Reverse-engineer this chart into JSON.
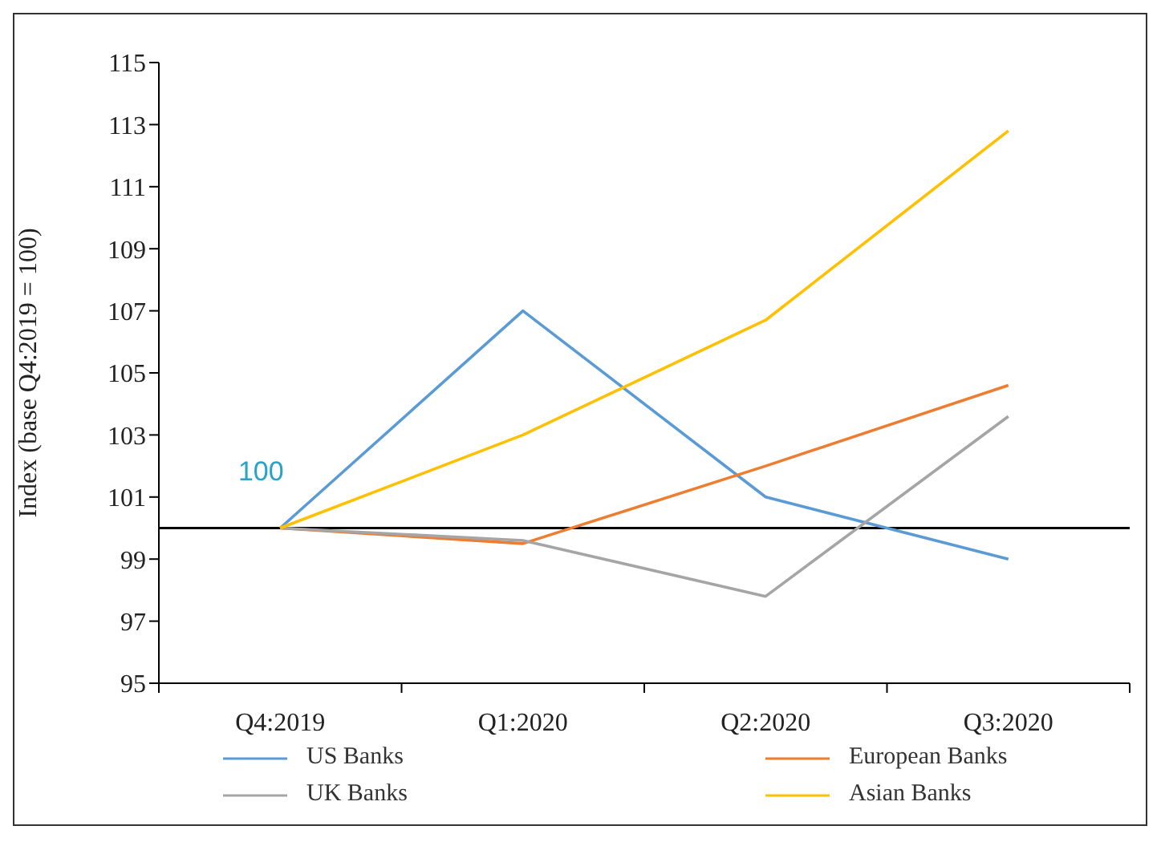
{
  "chart_data": {
    "type": "line",
    "ylabel": "Index (base Q4:2019 = 100)",
    "categories": [
      "Q4:2019",
      "Q1:2020",
      "Q2:2020",
      "Q3:2020"
    ],
    "series": [
      {
        "name": "US Banks",
        "color": "#5b9bd5",
        "values": [
          100,
          107,
          101,
          99
        ]
      },
      {
        "name": "European Banks",
        "color": "#ed7d31",
        "values": [
          100,
          99.5,
          102,
          104.6
        ]
      },
      {
        "name": "UK Banks",
        "color": "#a5a5a5",
        "values": [
          100,
          99.6,
          97.8,
          103.6
        ]
      },
      {
        "name": "Asian Banks",
        "color": "#ffc000",
        "values": [
          100,
          103,
          106.7,
          112.8
        ]
      }
    ],
    "ylim": [
      95,
      115
    ],
    "yticks": [
      95,
      97,
      99,
      101,
      103,
      105,
      107,
      109,
      111,
      113,
      115
    ],
    "ref_lines": [
      {
        "axis": "y",
        "value": 100,
        "color": "#000000"
      }
    ],
    "annotations": [
      {
        "text": "100",
        "x": "Q4:2019",
        "y": 100
      }
    ],
    "grid": false,
    "legend": "bottom",
    "marker": "none",
    "line_style": "solid"
  }
}
